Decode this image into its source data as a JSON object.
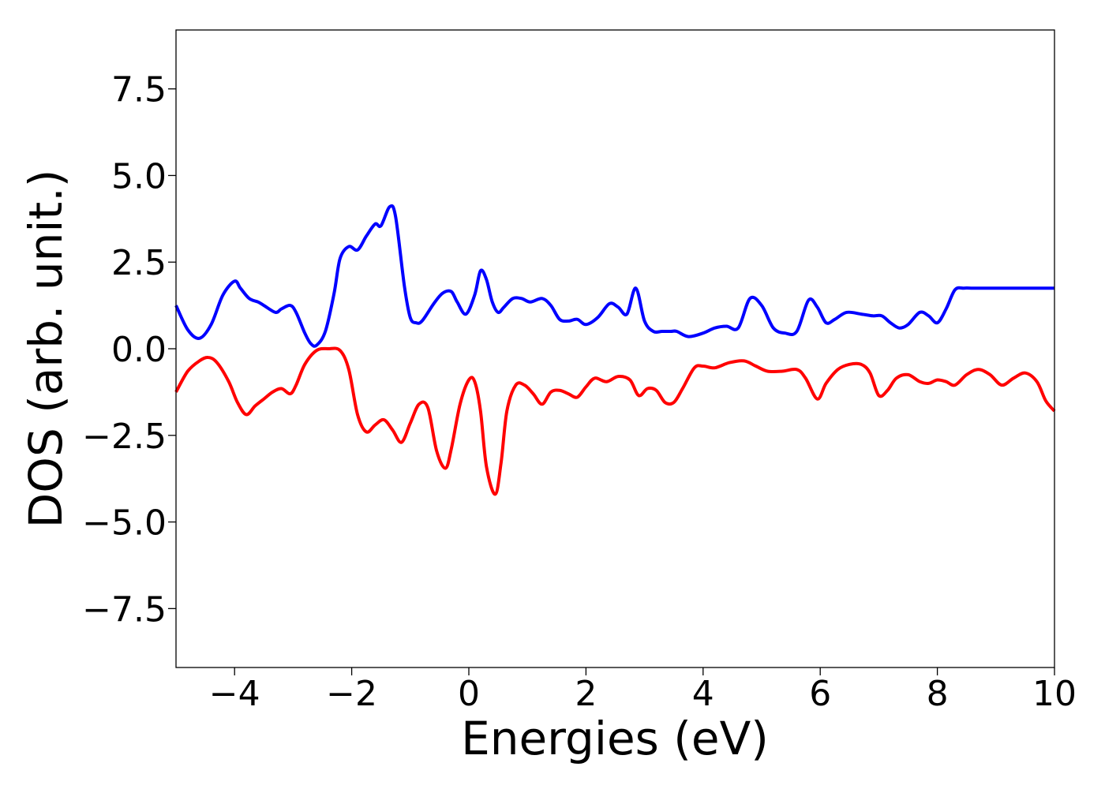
{
  "chart_data": {
    "type": "line",
    "title": "",
    "xlabel": "Energies (eV)",
    "ylabel": "DOS (arb. unit.)",
    "xlim": [
      -5,
      10
    ],
    "ylim": [
      -9.2,
      9.2
    ],
    "xticks": [
      -4,
      -2,
      0,
      2,
      4,
      6,
      8,
      10
    ],
    "xtick_labels": [
      "−4",
      "−2",
      "0",
      "2",
      "4",
      "6",
      "8",
      "10"
    ],
    "yticks": [
      7.5,
      5.0,
      2.5,
      0.0,
      -2.5,
      -5.0,
      -7.5
    ],
    "ytick_labels": [
      "7.5",
      "5.0",
      "2.5",
      "0.0",
      "−2.5",
      "−5.0",
      "−7.5"
    ],
    "grid": false,
    "legend": "none",
    "series": [
      {
        "color": "#0000ff",
        "x": [
          -5.0,
          -4.8,
          -4.6,
          -4.4,
          -4.2,
          -4.0,
          -3.9,
          -3.75,
          -3.6,
          -3.5,
          -3.3,
          -3.2,
          -3.05,
          -2.95,
          -2.8,
          -2.7,
          -2.6,
          -2.45,
          -2.3,
          -2.2,
          -2.05,
          -1.9,
          -1.75,
          -1.6,
          -1.5,
          -1.35,
          -1.25,
          -1.1,
          -1.0,
          -0.9,
          -0.8,
          -0.6,
          -0.45,
          -0.3,
          -0.2,
          -0.05,
          0.1,
          0.2,
          0.3,
          0.4,
          0.5,
          0.6,
          0.75,
          0.9,
          1.05,
          1.25,
          1.4,
          1.55,
          1.7,
          1.85,
          2.0,
          2.2,
          2.4,
          2.55,
          2.7,
          2.85,
          3.0,
          3.15,
          3.3,
          3.45,
          3.55,
          3.75,
          4.0,
          4.2,
          4.4,
          4.6,
          4.8,
          5.0,
          5.2,
          5.4,
          5.6,
          5.8,
          5.95,
          6.1,
          6.25,
          6.45,
          6.7,
          6.9,
          7.05,
          7.2,
          7.35,
          7.5,
          7.7,
          7.85,
          8.0,
          8.15,
          8.3,
          8.45,
          8.6,
          8.8,
          8.95,
          9.1,
          9.25,
          9.45,
          9.6,
          9.8,
          9.9,
          10.0
        ],
        "y": [
          1.25,
          0.55,
          0.3,
          0.7,
          1.55,
          1.95,
          1.75,
          1.45,
          1.35,
          1.25,
          1.05,
          1.15,
          1.25,
          1.05,
          0.45,
          0.15,
          0.1,
          0.5,
          1.6,
          2.6,
          2.95,
          2.85,
          3.25,
          3.6,
          3.55,
          4.1,
          3.8,
          1.8,
          0.9,
          0.75,
          0.8,
          1.3,
          1.6,
          1.65,
          1.35,
          1.0,
          1.55,
          2.25,
          2.0,
          1.35,
          1.05,
          1.2,
          1.45,
          1.45,
          1.35,
          1.45,
          1.25,
          0.85,
          0.8,
          0.85,
          0.7,
          0.9,
          1.3,
          1.2,
          1.0,
          1.75,
          0.8,
          0.5,
          0.5,
          0.5,
          0.5,
          0.35,
          0.45,
          0.6,
          0.65,
          0.6,
          1.45,
          1.25,
          0.6,
          0.45,
          0.5,
          1.4,
          1.2,
          0.75,
          0.85,
          1.05,
          1.0,
          0.95,
          0.95,
          0.75,
          0.6,
          0.7,
          1.05,
          0.95,
          0.75,
          1.15,
          1.7,
          1.75,
          1.75,
          1.75,
          1.75,
          1.75,
          1.75,
          1.75,
          1.75,
          1.75,
          1.75,
          1.75
        ]
      },
      {
        "color": "#ff0000",
        "x": [
          -5.0,
          -4.8,
          -4.6,
          -4.45,
          -4.3,
          -4.1,
          -3.95,
          -3.8,
          -3.65,
          -3.5,
          -3.35,
          -3.2,
          -3.05,
          -2.95,
          -2.8,
          -2.6,
          -2.4,
          -2.2,
          -2.05,
          -1.9,
          -1.75,
          -1.6,
          -1.45,
          -1.3,
          -1.15,
          -1.0,
          -0.85,
          -0.7,
          -0.55,
          -0.4,
          -0.3,
          -0.15,
          0.0,
          0.1,
          0.2,
          0.3,
          0.45,
          0.55,
          0.65,
          0.8,
          0.95,
          1.1,
          1.25,
          1.4,
          1.55,
          1.7,
          1.85,
          2.0,
          2.15,
          2.35,
          2.55,
          2.75,
          2.9,
          3.05,
          3.2,
          3.35,
          3.5,
          3.65,
          3.85,
          4.0,
          4.2,
          4.45,
          4.7,
          4.9,
          5.1,
          5.35,
          5.6,
          5.75,
          5.95,
          6.1,
          6.3,
          6.5,
          6.7,
          6.85,
          7.0,
          7.15,
          7.3,
          7.5,
          7.7,
          7.85,
          8.0,
          8.15,
          8.3,
          8.5,
          8.7,
          8.9,
          9.1,
          9.3,
          9.5,
          9.7,
          9.85,
          10.0
        ],
        "y": [
          -1.25,
          -0.65,
          -0.35,
          -0.25,
          -0.4,
          -0.95,
          -1.55,
          -1.9,
          -1.65,
          -1.45,
          -1.25,
          -1.15,
          -1.3,
          -1.05,
          -0.45,
          -0.05,
          0.0,
          -0.05,
          -0.6,
          -1.9,
          -2.4,
          -2.2,
          -2.05,
          -2.35,
          -2.7,
          -2.15,
          -1.6,
          -1.7,
          -2.95,
          -3.45,
          -2.9,
          -1.6,
          -0.9,
          -0.95,
          -1.8,
          -3.4,
          -4.2,
          -3.3,
          -1.8,
          -1.05,
          -1.05,
          -1.3,
          -1.6,
          -1.25,
          -1.2,
          -1.3,
          -1.4,
          -1.1,
          -0.85,
          -0.95,
          -0.8,
          -0.9,
          -1.35,
          -1.15,
          -1.2,
          -1.55,
          -1.55,
          -1.15,
          -0.55,
          -0.5,
          -0.55,
          -0.4,
          -0.35,
          -0.5,
          -0.65,
          -0.65,
          -0.6,
          -0.85,
          -1.45,
          -1.0,
          -0.6,
          -0.45,
          -0.45,
          -0.7,
          -1.35,
          -1.2,
          -0.85,
          -0.75,
          -0.95,
          -1.0,
          -0.9,
          -0.95,
          -1.05,
          -0.75,
          -0.6,
          -0.75,
          -1.05,
          -0.85,
          -0.7,
          -0.95,
          -1.5,
          -1.8
        ]
      }
    ]
  }
}
